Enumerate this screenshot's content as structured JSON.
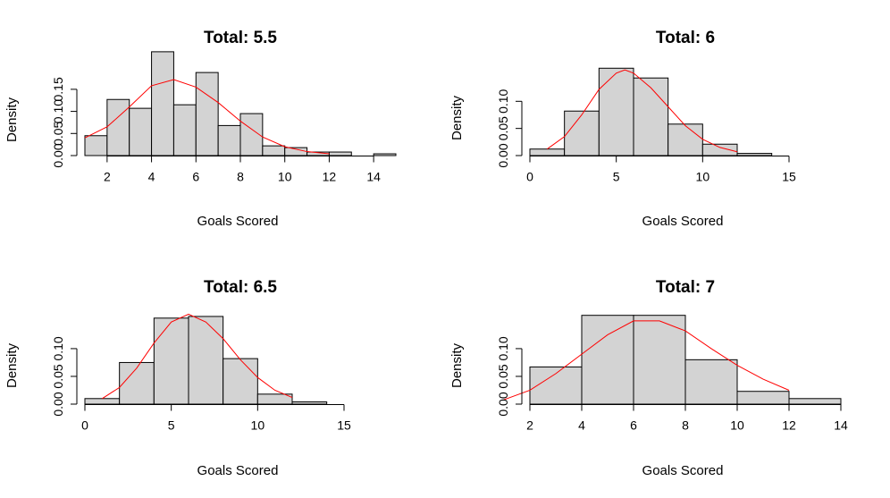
{
  "chart_data": [
    {
      "type": "bar",
      "title": "Total: 5.5",
      "xlabel": "Goals Scored",
      "ylabel": "Density",
      "xlim": [
        1,
        15
      ],
      "ylim": [
        0,
        0.17
      ],
      "x_ticks": [
        2,
        4,
        6,
        8,
        10,
        12,
        14
      ],
      "y_ticks": [
        0.0,
        0.05,
        0.1,
        0.15
      ],
      "y_tick_labels": [
        "0.00",
        "0.05",
        "0.10",
        "0.15"
      ],
      "bins": [
        {
          "from": 1,
          "to": 2,
          "density": 0.045
        },
        {
          "from": 2,
          "to": 3,
          "density": 0.127
        },
        {
          "from": 3,
          "to": 4,
          "density": 0.107
        },
        {
          "from": 4,
          "to": 5,
          "density": 0.235
        },
        {
          "from": 5,
          "to": 6,
          "density": 0.115
        },
        {
          "from": 6,
          "to": 7,
          "density": 0.188
        },
        {
          "from": 7,
          "to": 8,
          "density": 0.068
        },
        {
          "from": 8,
          "to": 9,
          "density": 0.095
        },
        {
          "from": 9,
          "to": 10,
          "density": 0.022
        },
        {
          "from": 10,
          "to": 11,
          "density": 0.018
        },
        {
          "from": 11,
          "to": 12,
          "density": 0.008
        },
        {
          "from": 12,
          "to": 13,
          "density": 0.008
        },
        {
          "from": 13,
          "to": 14,
          "density": 0.0
        },
        {
          "from": 14,
          "to": 15,
          "density": 0.004
        }
      ],
      "density_curve": {
        "x": [
          1,
          2,
          3,
          4,
          5,
          6,
          7,
          8,
          9,
          10,
          11,
          12
        ],
        "y": [
          0.04,
          0.065,
          0.11,
          0.158,
          0.172,
          0.155,
          0.12,
          0.078,
          0.042,
          0.02,
          0.009,
          0.004
        ]
      }
    },
    {
      "type": "bar",
      "title": "Total: 6",
      "xlabel": "Goals Scored",
      "ylabel": "Density",
      "xlim": [
        0,
        18
      ],
      "ylim": [
        0,
        0.145
      ],
      "x_ticks": [
        0,
        5,
        10,
        15
      ],
      "y_ticks": [
        0.0,
        0.05,
        0.1
      ],
      "y_tick_labels": [
        "0.00",
        "0.05",
        "0.10"
      ],
      "bins": [
        {
          "from": 0,
          "to": 2,
          "density": 0.012
        },
        {
          "from": 2,
          "to": 4,
          "density": 0.082
        },
        {
          "from": 4,
          "to": 6,
          "density": 0.161
        },
        {
          "from": 6,
          "to": 8,
          "density": 0.143
        },
        {
          "from": 8,
          "to": 10,
          "density": 0.058
        },
        {
          "from": 10,
          "to": 12,
          "density": 0.021
        },
        {
          "from": 12,
          "to": 14,
          "density": 0.004
        }
      ],
      "density_curve": {
        "x": [
          1,
          2,
          3,
          4,
          5,
          5.5,
          6,
          7,
          8,
          9,
          10,
          11,
          12
        ],
        "y": [
          0.012,
          0.035,
          0.075,
          0.122,
          0.152,
          0.158,
          0.152,
          0.125,
          0.09,
          0.055,
          0.03,
          0.015,
          0.007
        ]
      }
    },
    {
      "type": "bar",
      "title": "Total: 6.5",
      "xlabel": "Goals Scored",
      "ylabel": "Density",
      "xlim": [
        0,
        18
      ],
      "ylim": [
        0,
        0.145
      ],
      "x_ticks": [
        0,
        5,
        10,
        15
      ],
      "y_ticks": [
        0.0,
        0.05,
        0.1
      ],
      "y_tick_labels": [
        "0.00",
        "0.05",
        "0.10"
      ],
      "bins": [
        {
          "from": 0,
          "to": 2,
          "density": 0.01
        },
        {
          "from": 2,
          "to": 4,
          "density": 0.075
        },
        {
          "from": 4,
          "to": 6,
          "density": 0.155
        },
        {
          "from": 6,
          "to": 8,
          "density": 0.158
        },
        {
          "from": 8,
          "to": 10,
          "density": 0.082
        },
        {
          "from": 10,
          "to": 12,
          "density": 0.018
        },
        {
          "from": 12,
          "to": 14,
          "density": 0.004
        }
      ],
      "density_curve": {
        "x": [
          1,
          2,
          3,
          4,
          5,
          6,
          7,
          8,
          9,
          10,
          11,
          12
        ],
        "y": [
          0.01,
          0.03,
          0.065,
          0.11,
          0.148,
          0.162,
          0.148,
          0.118,
          0.08,
          0.048,
          0.025,
          0.012
        ]
      }
    },
    {
      "type": "bar",
      "title": "Total: 7",
      "xlabel": "Goals Scored",
      "ylabel": "Density",
      "xlim": [
        2,
        14
      ],
      "ylim": [
        0,
        0.145
      ],
      "x_ticks": [
        2,
        4,
        6,
        8,
        10,
        12,
        14
      ],
      "y_ticks": [
        0.0,
        0.05,
        0.1
      ],
      "y_tick_labels": [
        "0.00",
        "0.05",
        "0.10"
      ],
      "bins": [
        {
          "from": 2,
          "to": 4,
          "density": 0.067
        },
        {
          "from": 4,
          "to": 6,
          "density": 0.16
        },
        {
          "from": 6,
          "to": 8,
          "density": 0.16
        },
        {
          "from": 8,
          "to": 10,
          "density": 0.08
        },
        {
          "from": 10,
          "to": 12,
          "density": 0.023
        },
        {
          "from": 12,
          "to": 14,
          "density": 0.01
        }
      ],
      "density_curve": {
        "x": [
          1,
          2,
          3,
          4,
          5,
          6,
          7,
          8,
          9,
          10,
          11,
          12
        ],
        "y": [
          0.008,
          0.025,
          0.055,
          0.09,
          0.125,
          0.15,
          0.15,
          0.132,
          0.1,
          0.07,
          0.045,
          0.025
        ]
      }
    }
  ]
}
